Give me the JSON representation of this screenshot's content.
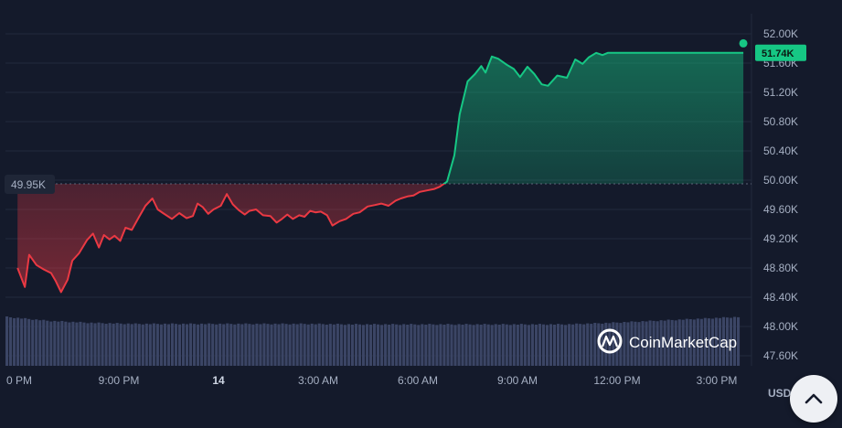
{
  "chart_data": {
    "type": "line",
    "title": "",
    "xlabel": "",
    "ylabel": "",
    "unit": "USD",
    "ylim": [
      47600,
      52000
    ],
    "y_ticks": [
      "52.00K",
      "51.60K",
      "51.20K",
      "50.80K",
      "50.40K",
      "50.00K",
      "49.60K",
      "49.20K",
      "48.80K",
      "48.40K",
      "48.00K",
      "47.60K"
    ],
    "x_ticks": [
      {
        "label": "0 PM",
        "hour": 6,
        "bold": false
      },
      {
        "label": "9:00 PM",
        "hour": 9,
        "bold": false
      },
      {
        "label": "14",
        "hour": 12,
        "bold": true
      },
      {
        "label": "3:00 AM",
        "hour": 15,
        "bold": false
      },
      {
        "label": "6:00 AM",
        "hour": 18,
        "bold": false
      },
      {
        "label": "9:00 AM",
        "hour": 21,
        "bold": false
      },
      {
        "label": "12:00 PM",
        "hour": 24,
        "bold": false
      },
      {
        "label": "3:00 PM",
        "hour": 27,
        "bold": false
      }
    ],
    "reference_price": 49950,
    "reference_label": "49.95K",
    "current_price": 51740,
    "current_label": "51.74K",
    "grid": true,
    "series": [
      {
        "color_above": "#16c784",
        "color_below": "#ea3943",
        "x": [
          5.95,
          6.17,
          6.3,
          6.52,
          6.74,
          6.96,
          7.1,
          7.26,
          7.46,
          7.6,
          7.8,
          8.04,
          8.22,
          8.4,
          8.55,
          8.72,
          8.87,
          9.04,
          9.2,
          9.39,
          9.61,
          9.8,
          10.01,
          10.17,
          10.33,
          10.6,
          10.82,
          11.04,
          11.23,
          11.37,
          11.53,
          11.69,
          11.85,
          12.07,
          12.25,
          12.43,
          12.61,
          12.79,
          12.93,
          13.13,
          13.34,
          13.56,
          13.75,
          13.91,
          14.07,
          14.24,
          14.43,
          14.59,
          14.76,
          14.92,
          15.08,
          15.27,
          15.43,
          15.65,
          15.84,
          16.06,
          16.25,
          16.49,
          16.71,
          16.9,
          17.12,
          17.33,
          17.49,
          17.71,
          17.87,
          18.06,
          18.28,
          18.5,
          18.66,
          18.88,
          19.1,
          19.26,
          19.5,
          19.72,
          19.91,
          20.04,
          20.23,
          20.42,
          20.67,
          20.89,
          21.08,
          21.3,
          21.51,
          21.73,
          21.92,
          22.2,
          22.49,
          22.74,
          22.96,
          23.15,
          23.37,
          23.56,
          23.72,
          23.83,
          23.95,
          24.01,
          24.14,
          24.27,
          24.43,
          24.57,
          24.68,
          24.84,
          25.11,
          25.27,
          25.51,
          25.78,
          26.02,
          26.19,
          26.35,
          26.56,
          26.75,
          26.97,
          27.13,
          27.24,
          27.37,
          27.52,
          27.7,
          27.8
        ],
        "y": [
          48800,
          48540,
          48980,
          48840,
          48780,
          48730,
          48620,
          48470,
          48640,
          48900,
          49000,
          49180,
          49270,
          49080,
          49250,
          49190,
          49240,
          49170,
          49350,
          49320,
          49500,
          49650,
          49750,
          49600,
          49550,
          49470,
          49550,
          49480,
          49510,
          49680,
          49630,
          49540,
          49600,
          49650,
          49810,
          49670,
          49590,
          49530,
          49580,
          49600,
          49520,
          49510,
          49420,
          49470,
          49530,
          49470,
          49520,
          49500,
          49580,
          49560,
          49570,
          49520,
          49380,
          49440,
          49470,
          49540,
          49560,
          49640,
          49660,
          49680,
          49650,
          49720,
          49750,
          49780,
          49790,
          49840,
          49860,
          49880,
          49910,
          49980,
          50340,
          50900,
          51350,
          51450,
          51560,
          51470,
          51690,
          51660,
          51580,
          51520,
          51410,
          51550,
          51450,
          51310,
          51290,
          51430,
          51400,
          51650,
          51590,
          51680,
          51740,
          51710,
          51740,
          51740,
          51740,
          51740,
          51740,
          51740,
          51740,
          51740,
          51740,
          51740,
          51740,
          51740,
          51740,
          51740,
          51740,
          51740,
          51740,
          51740,
          51740,
          51740,
          51740,
          51740,
          51740,
          51740,
          51740,
          51740
        ]
      }
    ],
    "volume": {
      "y_at_start": 346,
      "levels": [
        1.0,
        0.92,
        0.88,
        0.86,
        0.86,
        0.86,
        0.86,
        0.86,
        0.85,
        0.85,
        0.85,
        0.85,
        0.85,
        0.85,
        0.88,
        0.92,
        0.96,
        1.0
      ]
    }
  },
  "watermark": {
    "text": "CoinMarketCap",
    "icon": "coinmarketcap-logo-icon"
  },
  "scroll_top_button": {
    "icon": "chevron-up-icon"
  }
}
